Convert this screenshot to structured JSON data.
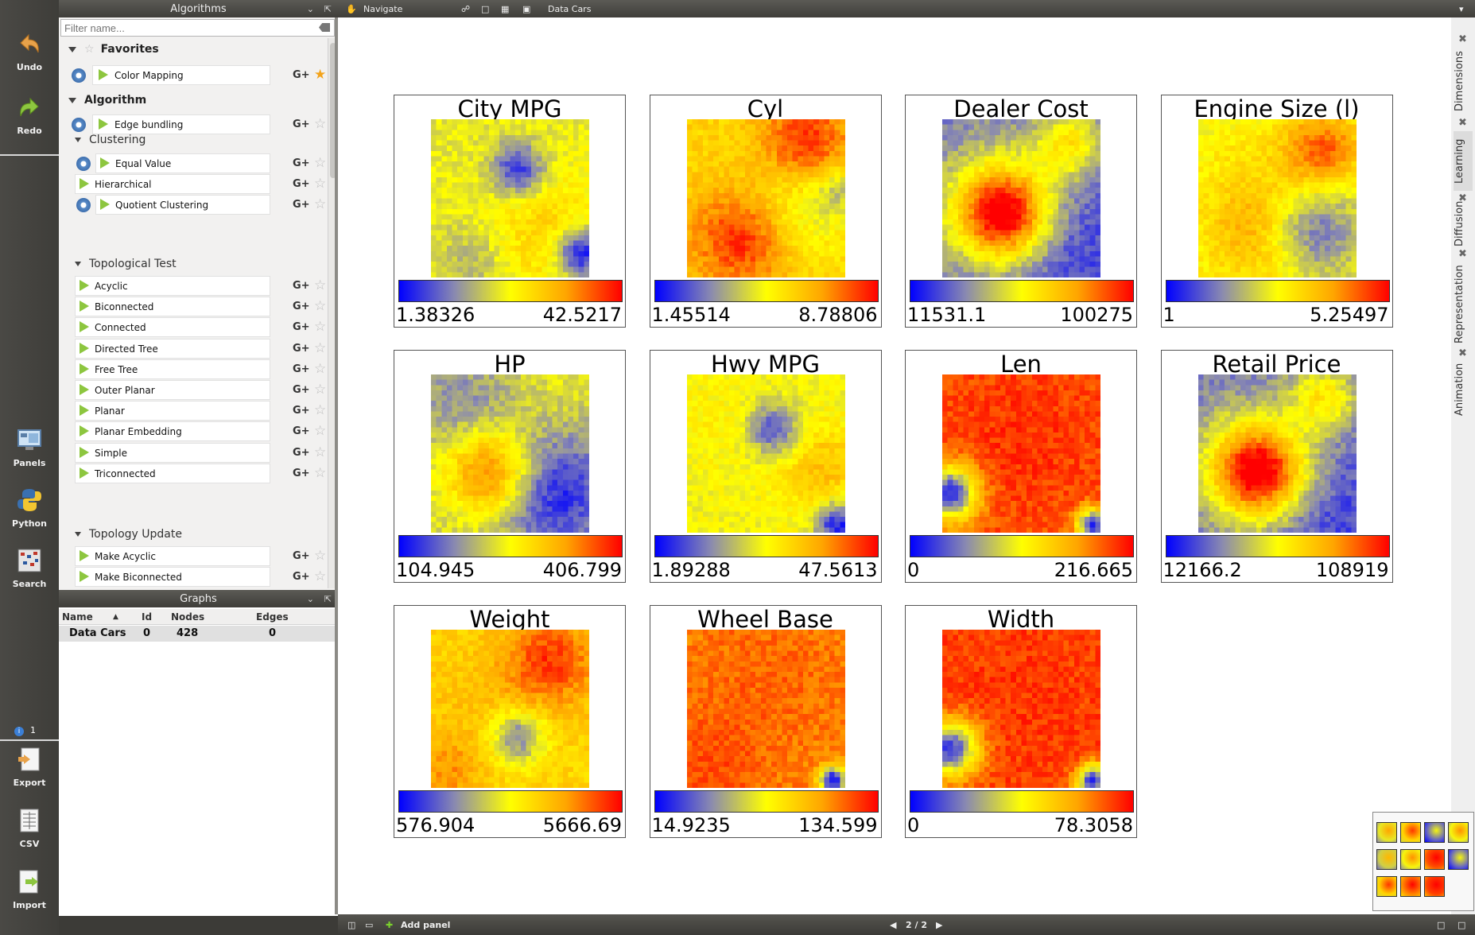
{
  "toolbar": {
    "undo": "Undo",
    "redo": "Redo",
    "panels": "Panels",
    "python": "Python",
    "search": "Search",
    "info_count": "1",
    "export": "Export",
    "csv": "CSV",
    "import": "Import"
  },
  "algorithms": {
    "title": "Algorithms",
    "filter_placeholder": "Filter name...",
    "favorites_label": "Favorites",
    "favorites": [
      {
        "label": "Color Mapping"
      }
    ],
    "algorithm_label": "Algorithm",
    "edge_bundling": "Edge bundling",
    "clustering_label": "Clustering",
    "clustering": [
      {
        "label": "Equal Value",
        "gear": true
      },
      {
        "label": "Hierarchical",
        "gear": false
      },
      {
        "label": "Quotient Clustering",
        "gear": true
      }
    ],
    "topological_test_label": "Topological Test",
    "topological_test": [
      "Acyclic",
      "Biconnected",
      "Connected",
      "Directed Tree",
      "Free Tree",
      "Outer Planar",
      "Planar",
      "Planar Embedding",
      "Simple",
      "Triconnected"
    ],
    "topology_update_label": "Topology Update",
    "topology_update": [
      "Make Acyclic",
      "Make Biconnected"
    ],
    "gc_symbol": "G+"
  },
  "graphs": {
    "title": "Graphs",
    "columns": {
      "name": "Name",
      "id": "Id",
      "nodes": "Nodes",
      "edges": "Edges"
    },
    "rows": [
      {
        "name": "Data Cars",
        "id": "0",
        "nodes": "428",
        "edges": "0"
      }
    ]
  },
  "workspace": {
    "mode": "Navigate",
    "graph_name": "Data Cars",
    "add_panel": "Add panel",
    "page": "2 / 2",
    "side_tabs": [
      "Dimensions",
      "Learning",
      "Diffusion",
      "Representation",
      "Animation"
    ]
  },
  "colors": {
    "low": "#0000ff",
    "mid_low": "#8a8ab0",
    "mid": "#ffff00",
    "mid_high": "#ffa500",
    "high": "#ff0000",
    "gear": "#3e6fae",
    "play": "#8dc63f",
    "favorite_star": "#f3a31b"
  },
  "chart_data": [
    {
      "type": "heatmap",
      "title": "City MPG",
      "min": "1.38326",
      "max": "42.5217",
      "base": 0.45,
      "blobs": [
        [
          0.55,
          0.32,
          0.12,
          -0.4
        ],
        [
          0.95,
          0.85,
          0.12,
          -0.5
        ],
        [
          0.7,
          0.75,
          0.3,
          0.2
        ],
        [
          0.3,
          0.9,
          0.2,
          -0.15
        ]
      ]
    },
    {
      "type": "heatmap",
      "title": "Cyl",
      "min": "1.45514",
      "max": "8.78806",
      "base": 0.62,
      "blobs": [
        [
          0.35,
          0.75,
          0.22,
          0.35
        ],
        [
          0.75,
          0.15,
          0.2,
          0.35
        ],
        [
          0.7,
          0.55,
          0.25,
          -0.2
        ],
        [
          0.95,
          0.45,
          0.1,
          -0.2
        ]
      ]
    },
    {
      "type": "heatmap",
      "title": "Dealer Cost",
      "min": "11531.1",
      "max": "100275",
      "base": 0.18,
      "blobs": [
        [
          0.38,
          0.6,
          0.2,
          0.75
        ],
        [
          0.35,
          0.5,
          0.35,
          0.2
        ],
        [
          0.8,
          0.15,
          0.15,
          0.35
        ],
        [
          0.75,
          0.8,
          0.3,
          -0.1
        ]
      ]
    },
    {
      "type": "heatmap",
      "title": "Engine Size (l)",
      "min": "1",
      "max": "5.25497",
      "base": 0.48,
      "blobs": [
        [
          0.78,
          0.2,
          0.18,
          0.4
        ],
        [
          0.4,
          0.7,
          0.25,
          0.3
        ],
        [
          0.7,
          0.7,
          0.22,
          -0.35
        ],
        [
          0.25,
          0.25,
          0.2,
          0.05
        ]
      ]
    },
    {
      "type": "heatmap",
      "title": "HP",
      "min": "104.945",
      "max": "406.799",
      "base": 0.4,
      "blobs": [
        [
          0.38,
          0.62,
          0.2,
          0.5
        ],
        [
          0.75,
          0.75,
          0.28,
          -0.35
        ],
        [
          0.2,
          0.2,
          0.22,
          -0.15
        ],
        [
          0.8,
          0.1,
          0.2,
          0.05
        ]
      ]
    },
    {
      "type": "heatmap",
      "title": "Hwy MPG",
      "min": "1.89288",
      "max": "47.5613",
      "base": 0.48,
      "blobs": [
        [
          0.55,
          0.35,
          0.12,
          -0.35
        ],
        [
          0.85,
          0.6,
          0.2,
          0.2
        ],
        [
          0.95,
          0.95,
          0.1,
          -0.45
        ],
        [
          0.2,
          0.3,
          0.25,
          0.05
        ]
      ]
    },
    {
      "type": "heatmap",
      "title": "Len",
      "min": "0",
      "max": "216.665",
      "base": 0.88,
      "blobs": [
        [
          0.05,
          0.75,
          0.12,
          -0.8
        ],
        [
          0.95,
          0.95,
          0.07,
          -0.8
        ],
        [
          0.5,
          0.4,
          0.3,
          0.05
        ]
      ]
    },
    {
      "type": "heatmap",
      "title": "Retail Price",
      "min": "12166.2",
      "max": "108919",
      "base": 0.18,
      "blobs": [
        [
          0.38,
          0.62,
          0.2,
          0.75
        ],
        [
          0.35,
          0.55,
          0.35,
          0.2
        ],
        [
          0.8,
          0.15,
          0.15,
          0.35
        ],
        [
          0.75,
          0.85,
          0.3,
          -0.1
        ]
      ]
    },
    {
      "type": "heatmap",
      "title": "Weight",
      "min": "576.904",
      "max": "5666.69",
      "base": 0.62,
      "blobs": [
        [
          0.75,
          0.2,
          0.2,
          0.3
        ],
        [
          0.55,
          0.68,
          0.12,
          -0.4
        ],
        [
          0.3,
          0.5,
          0.25,
          0.05
        ],
        [
          0.1,
          0.9,
          0.15,
          0.15
        ]
      ]
    },
    {
      "type": "heatmap",
      "title": "Wheel Base",
      "min": "14.9235",
      "max": "134.599",
      "base": 0.8,
      "blobs": [
        [
          0.5,
          0.3,
          0.35,
          0.05
        ],
        [
          0.92,
          0.95,
          0.06,
          -0.8
        ],
        [
          0.15,
          0.9,
          0.25,
          0.08
        ]
      ]
    },
    {
      "type": "heatmap",
      "title": "Width",
      "min": "0",
      "max": "78.3058",
      "base": 0.9,
      "blobs": [
        [
          0.05,
          0.75,
          0.12,
          -0.8
        ],
        [
          0.95,
          0.95,
          0.07,
          -0.8
        ],
        [
          0.5,
          0.4,
          0.3,
          0.02
        ]
      ]
    }
  ]
}
